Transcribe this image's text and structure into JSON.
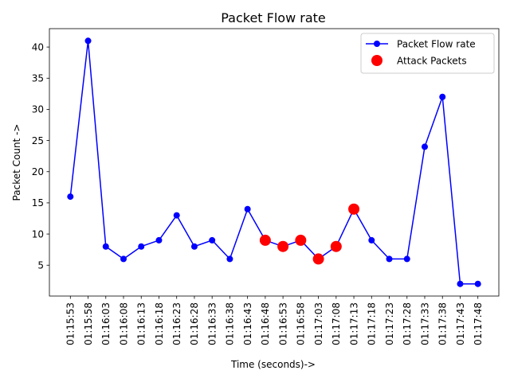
{
  "chart_data": {
    "type": "line",
    "title": "Packet Flow rate",
    "xlabel": "Time (seconds)->",
    "ylabel": "Packet Count ->",
    "ylim": [
      0.05,
      42.95
    ],
    "yticks": [
      5,
      10,
      15,
      20,
      25,
      30,
      35,
      40
    ],
    "grid": false,
    "legend_position": "top-right",
    "categories": [
      "01:15:53",
      "01:15:58",
      "01:16:03",
      "01:16:08",
      "01:16:13",
      "01:16:18",
      "01:16:23",
      "01:16:28",
      "01:16:33",
      "01:16:38",
      "01:16:43",
      "01:16:48",
      "01:16:53",
      "01:16:58",
      "01:17:03",
      "01:17:08",
      "01:17:13",
      "01:17:18",
      "01:17:23",
      "01:17:28",
      "01:17:33",
      "01:17:38",
      "01:17:43",
      "01:17:48"
    ],
    "series": [
      {
        "name": "Packet Flow rate",
        "color": "#0000ff",
        "style": "line-with-markers",
        "values": [
          16,
          41,
          8,
          6,
          8,
          9,
          13,
          8,
          9,
          6,
          14,
          9,
          8,
          9,
          6,
          8,
          14,
          9,
          6,
          6,
          24,
          32,
          2,
          2
        ]
      },
      {
        "name": "Attack Packets",
        "color": "#ff0000",
        "style": "markers",
        "points": [
          {
            "x": "01:16:48",
            "y": 9
          },
          {
            "x": "01:16:53",
            "y": 8
          },
          {
            "x": "01:16:58",
            "y": 9
          },
          {
            "x": "01:17:03",
            "y": 6
          },
          {
            "x": "01:17:08",
            "y": 8
          },
          {
            "x": "01:17:13",
            "y": 14
          }
        ]
      }
    ]
  }
}
